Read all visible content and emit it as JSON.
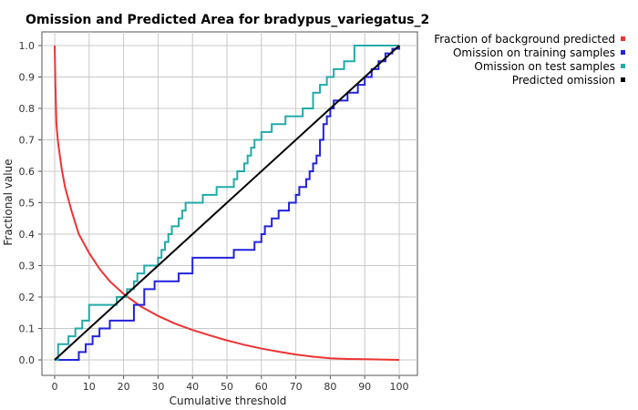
{
  "chart_data": {
    "type": "line",
    "title": "Omission and Predicted Area for bradypus_variegatus_2",
    "xlabel": "Cumulative threshold",
    "ylabel": "Fractional value",
    "xlim": [
      0,
      100
    ],
    "ylim": [
      0,
      1
    ],
    "xticks": [
      0,
      10,
      20,
      30,
      40,
      50,
      60,
      70,
      80,
      90,
      100
    ],
    "yticks": [
      0.0,
      0.1,
      0.2,
      0.3,
      0.4,
      0.5,
      0.6,
      0.7,
      0.8,
      0.9,
      1.0
    ],
    "xtick_labels": [
      "0",
      "10",
      "20",
      "30",
      "40",
      "50",
      "60",
      "70",
      "80",
      "90",
      "100"
    ],
    "ytick_labels": [
      "0.0",
      "0.1",
      "0.2",
      "0.3",
      "0.4",
      "0.5",
      "0.6",
      "0.7",
      "0.8",
      "0.9",
      "1.0"
    ],
    "grid": true,
    "legend_position": "top-right-outside",
    "series": [
      {
        "name": "Fraction of background predicted",
        "color": "#ee3333",
        "x": [
          0,
          0.2,
          0.5,
          1,
          2,
          3,
          5,
          7,
          10,
          13,
          16,
          20,
          25,
          30,
          35,
          40,
          45,
          50,
          55,
          60,
          65,
          70,
          75,
          80,
          85,
          90,
          95,
          100
        ],
        "y": [
          1.0,
          0.88,
          0.75,
          0.69,
          0.61,
          0.55,
          0.47,
          0.4,
          0.34,
          0.29,
          0.25,
          0.21,
          0.17,
          0.14,
          0.115,
          0.095,
          0.078,
          0.062,
          0.048,
          0.036,
          0.026,
          0.017,
          0.01,
          0.005,
          0.003,
          0.002,
          0.001,
          0.0
        ]
      },
      {
        "name": "Omission on training samples",
        "color": "#2222dd",
        "x": [
          0,
          7,
          9,
          11,
          13,
          16,
          23,
          26,
          29,
          36,
          40,
          52,
          58,
          60,
          61,
          63,
          65,
          68,
          70,
          71,
          73,
          74,
          75,
          76,
          77,
          78,
          79,
          80,
          81,
          85,
          88,
          90,
          92,
          94,
          96,
          98,
          100
        ],
        "y": [
          0.0,
          0.025,
          0.05,
          0.075,
          0.1,
          0.125,
          0.175,
          0.225,
          0.25,
          0.275,
          0.325,
          0.35,
          0.375,
          0.4,
          0.425,
          0.45,
          0.475,
          0.5,
          0.525,
          0.55,
          0.575,
          0.6,
          0.625,
          0.65,
          0.7,
          0.75,
          0.775,
          0.8,
          0.825,
          0.85,
          0.875,
          0.9,
          0.925,
          0.95,
          0.975,
          0.99,
          1.0
        ]
      },
      {
        "name": "Omission on test samples",
        "color": "#22aaaa",
        "x": [
          0,
          1,
          4,
          6,
          8,
          10,
          18,
          21,
          23,
          24,
          26,
          30,
          31,
          32,
          33,
          34,
          36,
          37,
          38,
          43,
          47,
          52,
          53,
          55,
          56,
          57,
          58,
          60,
          63,
          67,
          72,
          75,
          77,
          79,
          81,
          84,
          87,
          93,
          96,
          98,
          100
        ],
        "y": [
          0.0,
          0.05,
          0.075,
          0.1,
          0.125,
          0.175,
          0.2,
          0.225,
          0.25,
          0.275,
          0.3,
          0.325,
          0.35,
          0.375,
          0.4,
          0.425,
          0.45,
          0.475,
          0.5,
          0.525,
          0.55,
          0.575,
          0.6,
          0.625,
          0.65,
          0.675,
          0.7,
          0.725,
          0.75,
          0.775,
          0.8,
          0.85,
          0.875,
          0.9,
          0.925,
          0.95,
          1.0,
          1.0,
          1.0,
          1.0,
          1.0
        ]
      },
      {
        "name": "Predicted omission",
        "color": "#000000",
        "x": [
          0,
          100
        ],
        "y": [
          0,
          1
        ]
      }
    ]
  }
}
